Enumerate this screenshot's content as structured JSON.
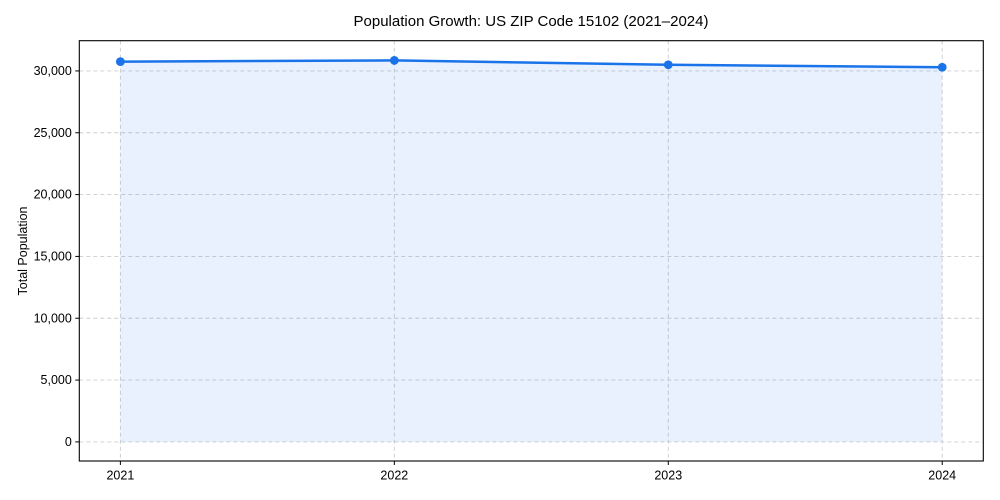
{
  "chart_data": {
    "type": "line",
    "title": "Population Growth: US ZIP Code 15102 (2021–2024)",
    "xlabel": "",
    "ylabel": "Total Population",
    "x": [
      2021,
      2022,
      2023,
      2024
    ],
    "series": [
      {
        "name": "Total Population",
        "values": [
          30750,
          30850,
          30500,
          30300
        ]
      }
    ],
    "xtick_values": [
      2021,
      2022,
      2023,
      2024
    ],
    "xtick_labels": [
      "2021",
      "2022",
      "2023",
      "2024"
    ],
    "ytick_values": [
      0,
      5000,
      10000,
      15000,
      20000,
      25000,
      30000
    ],
    "ytick_labels": [
      "0",
      "5,000",
      "10,000",
      "15,000",
      "20,000",
      "25,000",
      "30,000"
    ],
    "xlim": [
      2020.85,
      2024.15
    ],
    "ylim": [
      -1545,
      32445
    ],
    "grid": true,
    "grid_style": "dashed",
    "legend_position": "none",
    "area_fill": true,
    "marker": "circle",
    "colors": {
      "line": "#1a73e8",
      "marker": "#1a73e8",
      "fill": "#1a73e8",
      "fill_opacity": 0.1,
      "grid": "#cccccc",
      "spine": "#000000",
      "text": "#000000",
      "background": "#ffffff"
    }
  }
}
